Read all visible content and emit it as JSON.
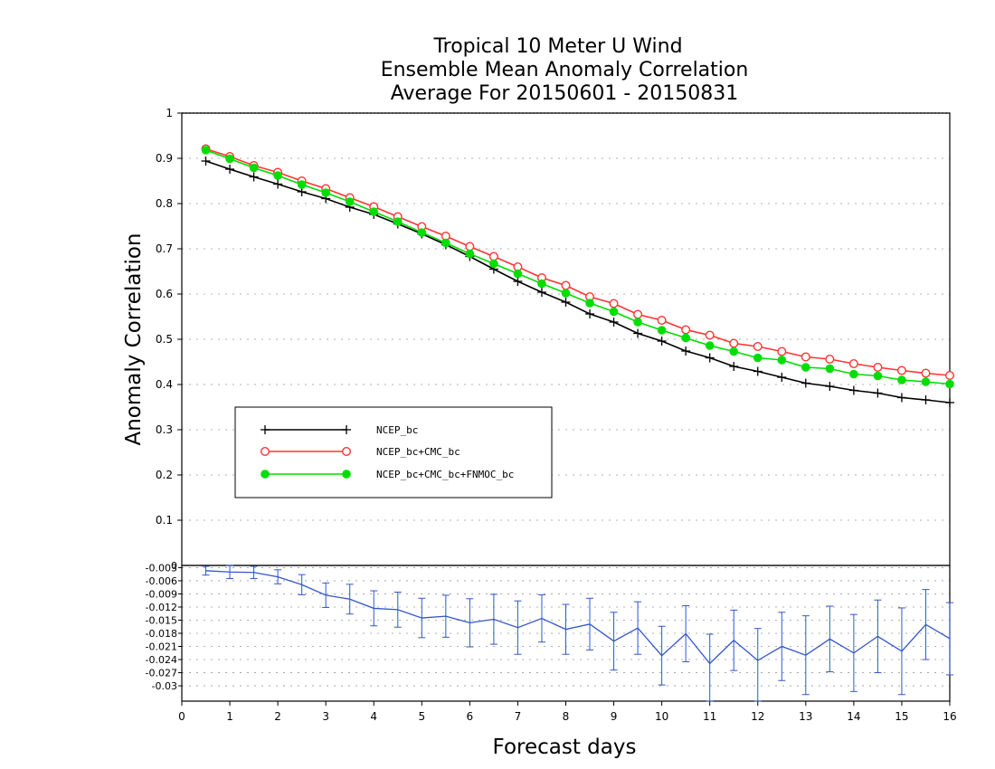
{
  "chart_data": [
    {
      "type": "line",
      "title": [
        "Tropical 10 Meter U Wind",
        "Ensemble Mean Anomaly Correlation",
        "Average For 20150601 - 20150831"
      ],
      "xlabel": "Forecast days",
      "ylabel": "Anomaly Correlation",
      "xlim": [
        0,
        16
      ],
      "ylim": [
        0,
        1
      ],
      "xticks": [
        "0",
        "1",
        "2",
        "3",
        "4",
        "5",
        "6",
        "7",
        "8",
        "9",
        "10",
        "11",
        "12",
        "13",
        "14",
        "15",
        "16"
      ],
      "yticks": [
        "0.1",
        "0.2",
        "0.3",
        "0.4",
        "0.5",
        "0.6",
        "0.7",
        "0.8",
        "0.9",
        "1"
      ],
      "grid": "dotted horizontal",
      "legend_position": "center-left",
      "x": [
        0.5,
        1,
        1.5,
        2,
        2.5,
        3,
        3.5,
        4,
        4.5,
        5,
        5.5,
        6,
        6.5,
        7,
        7.5,
        8,
        8.5,
        9,
        9.5,
        10,
        10.5,
        11,
        11.5,
        12,
        12.5,
        13,
        13.5,
        14,
        14.5,
        15,
        15.5,
        16
      ],
      "series": [
        {
          "name": "NCEP_bc",
          "color": "#000000",
          "marker": "plus",
          "values": [
            0.894,
            0.876,
            0.859,
            0.843,
            0.826,
            0.811,
            0.792,
            0.776,
            0.755,
            0.733,
            0.709,
            0.683,
            0.655,
            0.628,
            0.604,
            0.582,
            0.556,
            0.538,
            0.513,
            0.496,
            0.474,
            0.459,
            0.44,
            0.429,
            0.416,
            0.403,
            0.396,
            0.387,
            0.381,
            0.371,
            0.366,
            0.36
          ]
        },
        {
          "name": "NCEP_bc+CMC_bc",
          "color": "#ff3333",
          "marker": "open-circle",
          "values": [
            0.921,
            0.904,
            0.884,
            0.869,
            0.85,
            0.833,
            0.813,
            0.793,
            0.771,
            0.749,
            0.728,
            0.705,
            0.683,
            0.66,
            0.636,
            0.619,
            0.594,
            0.579,
            0.555,
            0.542,
            0.521,
            0.509,
            0.491,
            0.484,
            0.473,
            0.461,
            0.456,
            0.446,
            0.438,
            0.431,
            0.425,
            0.42
          ]
        },
        {
          "name": "NCEP_bc+CMC_bc+FNMOC_bc",
          "color": "#00dd00",
          "marker": "filled-circle",
          "values": [
            0.918,
            0.899,
            0.879,
            0.862,
            0.842,
            0.824,
            0.804,
            0.782,
            0.76,
            0.736,
            0.713,
            0.689,
            0.667,
            0.645,
            0.623,
            0.602,
            0.58,
            0.561,
            0.538,
            0.52,
            0.503,
            0.486,
            0.473,
            0.459,
            0.454,
            0.438,
            0.435,
            0.423,
            0.419,
            0.41,
            0.406,
            0.401
          ]
        }
      ]
    },
    {
      "type": "line",
      "xlim": [
        0,
        16
      ],
      "ylim": [
        -0.0335,
        -0.0025
      ],
      "yticks": [
        "-0.003",
        "-0.006",
        "-0.009",
        "-0.012",
        "-0.015",
        "-0.018",
        "-0.021",
        "-0.024",
        "-0.027",
        "-0.03"
      ],
      "ytick_values": [
        -0.003,
        -0.006,
        -0.009,
        -0.012,
        -0.015,
        -0.018,
        -0.021,
        -0.024,
        -0.027,
        -0.03
      ],
      "extra_tick": "0",
      "series": [
        {
          "name": "",
          "color": "#3355cc",
          "error_bars": true,
          "x": [
            0.5,
            1,
            1.5,
            2,
            2.5,
            3,
            3.5,
            4,
            4.5,
            5,
            5.5,
            6,
            6.5,
            7,
            7.5,
            8,
            8.5,
            9,
            9.5,
            10,
            10.5,
            11,
            11.5,
            12,
            12.5,
            13,
            13.5,
            14,
            14.5,
            15,
            15.5,
            16
          ],
          "values": [
            -0.0037,
            -0.004,
            -0.0041,
            -0.0051,
            -0.0069,
            -0.0093,
            -0.0102,
            -0.0123,
            -0.0126,
            -0.0145,
            -0.0141,
            -0.0156,
            -0.0148,
            -0.0167,
            -0.0146,
            -0.0171,
            -0.0159,
            -0.0198,
            -0.0168,
            -0.0231,
            -0.0181,
            -0.0249,
            -0.0196,
            -0.0242,
            -0.021,
            -0.023,
            -0.0193,
            -0.0225,
            -0.0187,
            -0.0221,
            -0.016,
            -0.0192
          ],
          "lower": [
            -0.0047,
            -0.0055,
            -0.0055,
            -0.0067,
            -0.0092,
            -0.0121,
            -0.0136,
            -0.0163,
            -0.0166,
            -0.019,
            -0.0189,
            -0.0211,
            -0.0205,
            -0.0228,
            -0.02,
            -0.0228,
            -0.0218,
            -0.0264,
            -0.0228,
            -0.0298,
            -0.0245,
            -0.0335,
            -0.0265,
            -0.0335,
            -0.0288,
            -0.032,
            -0.0268,
            -0.0313,
            -0.027,
            -0.032,
            -0.024,
            -0.0275
          ],
          "upper": [
            -0.0027,
            -0.0025,
            -0.0027,
            -0.0035,
            -0.0046,
            -0.0065,
            -0.0068,
            -0.0083,
            -0.0086,
            -0.01,
            -0.0093,
            -0.0101,
            -0.0091,
            -0.0106,
            -0.0092,
            -0.0114,
            -0.01,
            -0.0132,
            -0.0108,
            -0.0164,
            -0.0117,
            -0.0182,
            -0.0127,
            -0.0169,
            -0.0132,
            -0.014,
            -0.0118,
            -0.0137,
            -0.0104,
            -0.0122,
            -0.008,
            -0.011
          ]
        }
      ]
    }
  ]
}
